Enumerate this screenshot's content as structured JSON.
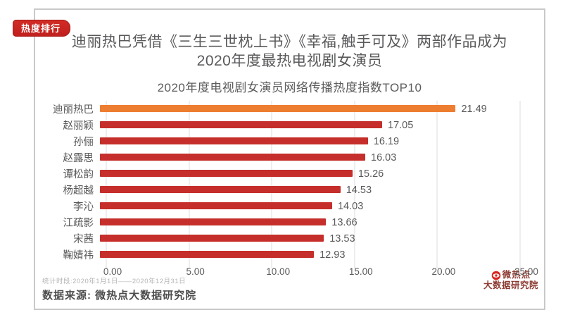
{
  "badge": {
    "label": "热度排行"
  },
  "header": {
    "title_line1": "迪丽热巴凭借《三生三世枕上书》《幸福,触手可及》两部作品成为",
    "title_line2": "2020年度最热电视剧女演员"
  },
  "chart_data": {
    "type": "bar",
    "orientation": "horizontal",
    "title": "2020年度电视剧女演员网络传播热度指数TOP10",
    "categories": [
      "迪丽热巴",
      "赵丽颖",
      "孙俪",
      "赵露思",
      "谭松韵",
      "杨超越",
      "李沁",
      "江疏影",
      "宋茜",
      "鞠婧祎"
    ],
    "values": [
      21.49,
      17.05,
      16.19,
      16.03,
      15.26,
      14.53,
      14.03,
      13.66,
      13.53,
      12.93
    ],
    "xlabel": "",
    "ylabel": "",
    "xlim": [
      0,
      25
    ],
    "x_ticks": [
      "0.00",
      "5.00",
      "10.00",
      "15.00",
      "20.00",
      "25.00"
    ],
    "grid": true,
    "highlight_index": 0,
    "value_labels": true
  },
  "colors": {
    "highlight_bar": "#ED7D31",
    "bar": "#C52E2A",
    "badge_red": "#C92420",
    "text_gray": "#595959",
    "gridline": "#DEDEDE"
  },
  "footer": {
    "period": "统计时段:2020年1月1日——2020年12月31日",
    "source": "数据来源: 微热点大数据研究院"
  },
  "logo": {
    "line1": "微热点",
    "line2": "大数据研究院"
  }
}
